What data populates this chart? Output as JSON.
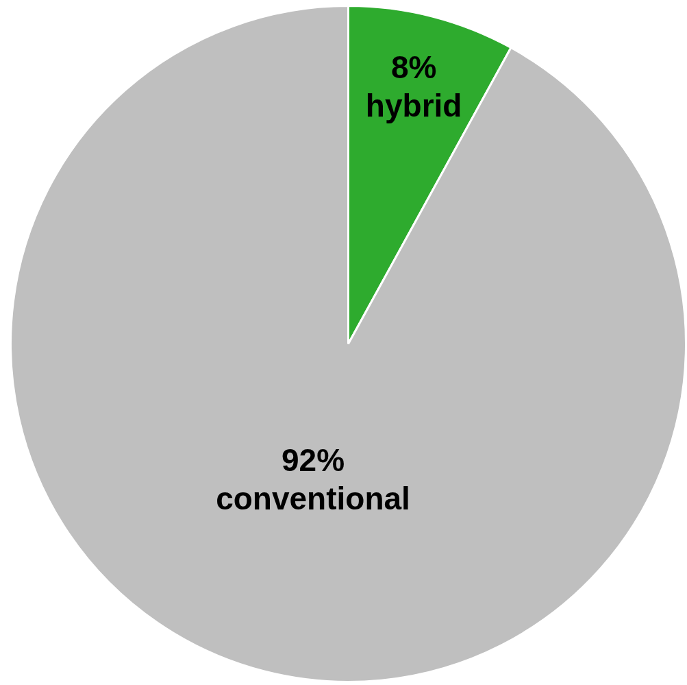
{
  "chart_data": {
    "type": "pie",
    "categories": [
      "hybrid",
      "conventional"
    ],
    "values": [
      8,
      92
    ],
    "colors": [
      "#2eab2e",
      "#bfbfbf"
    ],
    "value_labels": [
      "8%",
      "92%"
    ],
    "legend": false
  }
}
